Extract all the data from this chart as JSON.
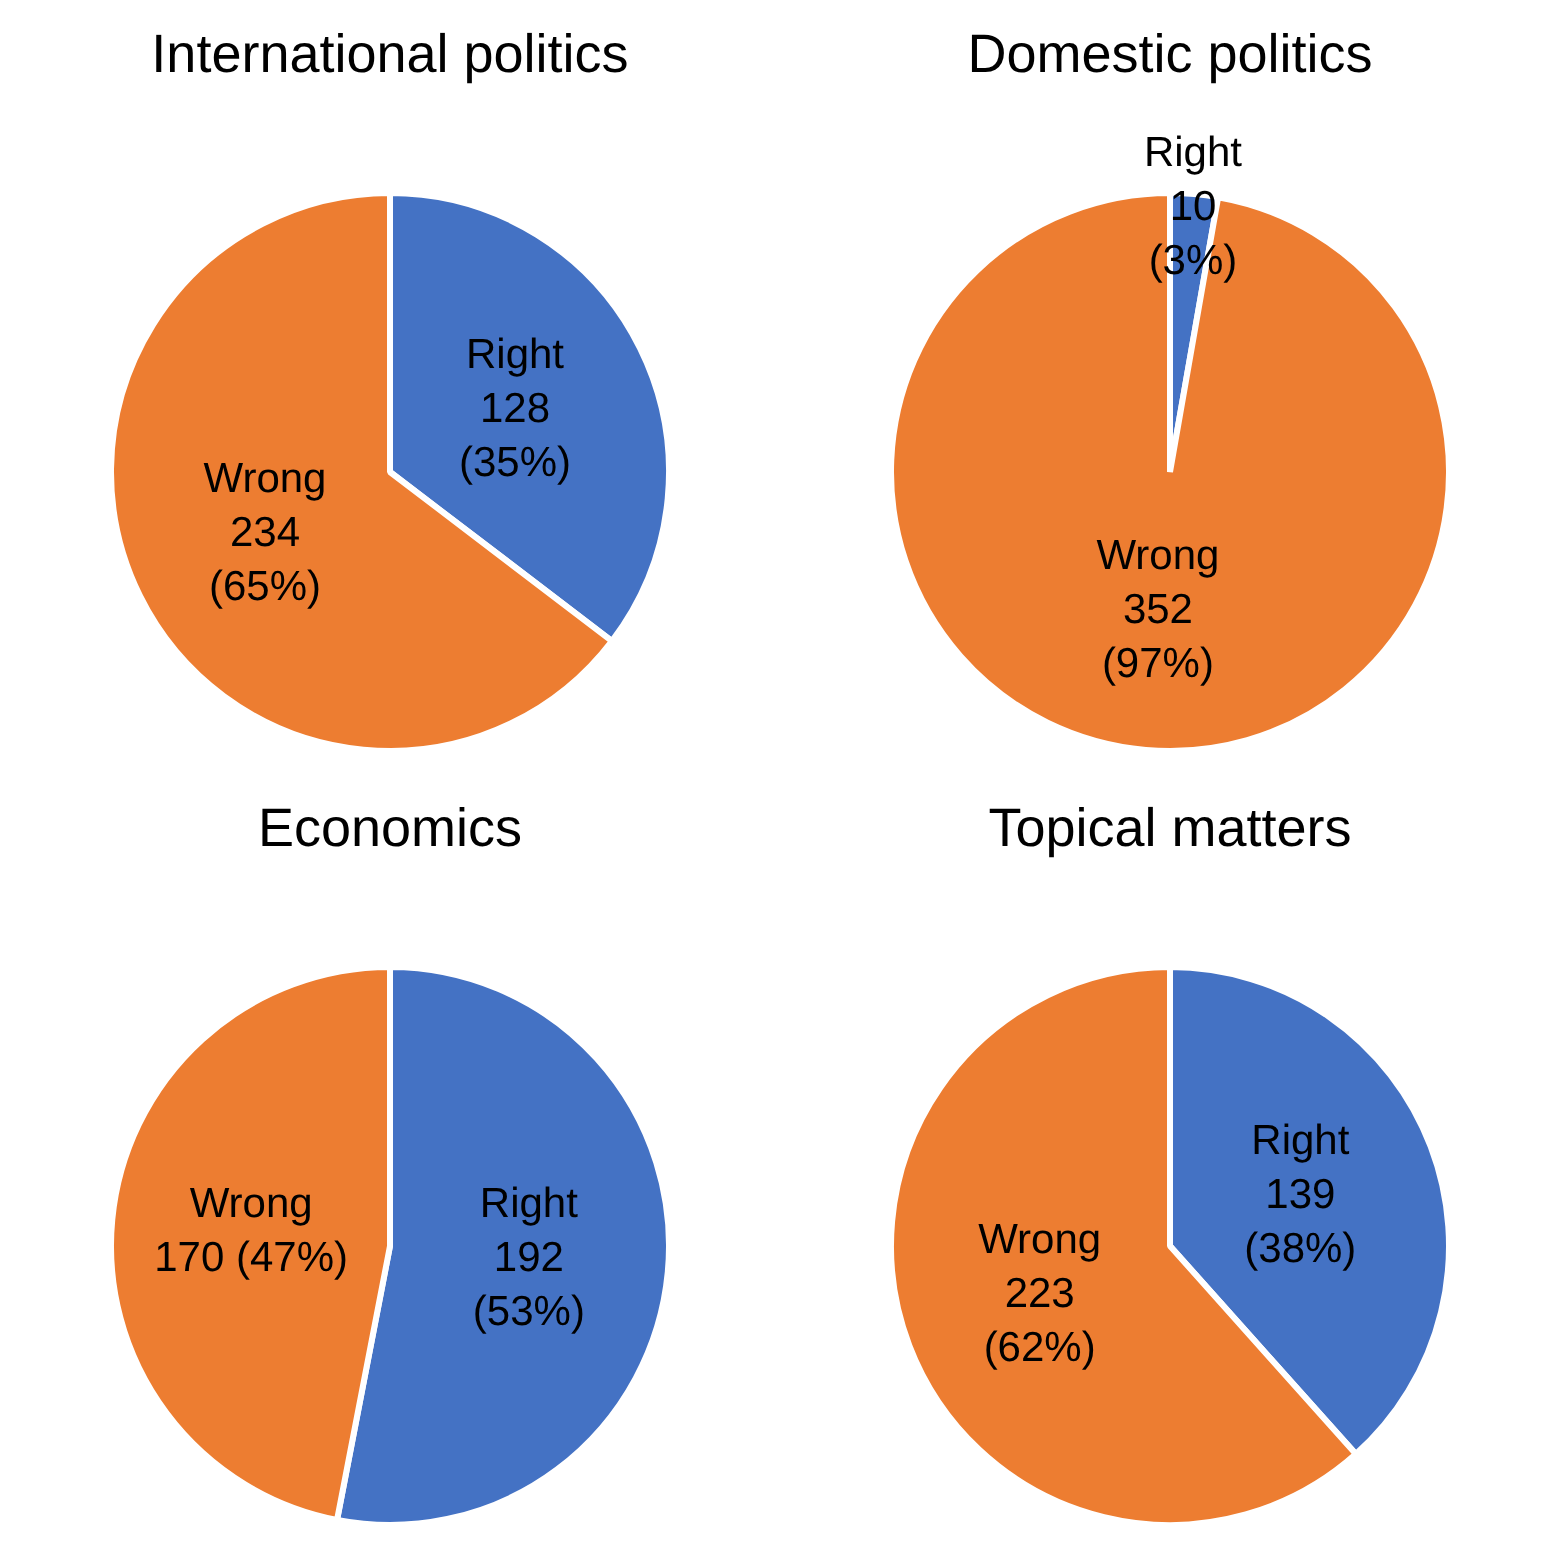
{
  "chart_data": [
    {
      "type": "pie",
      "title": "International politics",
      "categories": [
        "Right",
        "Wrong"
      ],
      "values": [
        128,
        234
      ],
      "colors": [
        "#4472c4",
        "#ed7d31"
      ],
      "value_labels": [
        "128\n(35%)",
        "234\n(65%)"
      ]
    },
    {
      "type": "pie",
      "title": "Domestic politics",
      "categories": [
        "Right",
        "Wrong"
      ],
      "values": [
        10,
        352
      ],
      "colors": [
        "#4472c4",
        "#ed7d31"
      ],
      "value_labels": [
        "10\n(3%)",
        "352\n(97%)"
      ]
    },
    {
      "type": "pie",
      "title": "Economics",
      "categories": [
        "Right",
        "Wrong"
      ],
      "values": [
        192,
        170
      ],
      "colors": [
        "#4472c4",
        "#ed7d31"
      ],
      "value_labels": [
        "192\n(53%)",
        "170 (47%)"
      ]
    },
    {
      "type": "pie",
      "title": "Topical matters",
      "categories": [
        "Right",
        "Wrong"
      ],
      "values": [
        139,
        223
      ],
      "colors": [
        "#4472c4",
        "#ed7d31"
      ],
      "value_labels": [
        "139\n(38%)",
        "223\n(62%)"
      ]
    }
  ]
}
